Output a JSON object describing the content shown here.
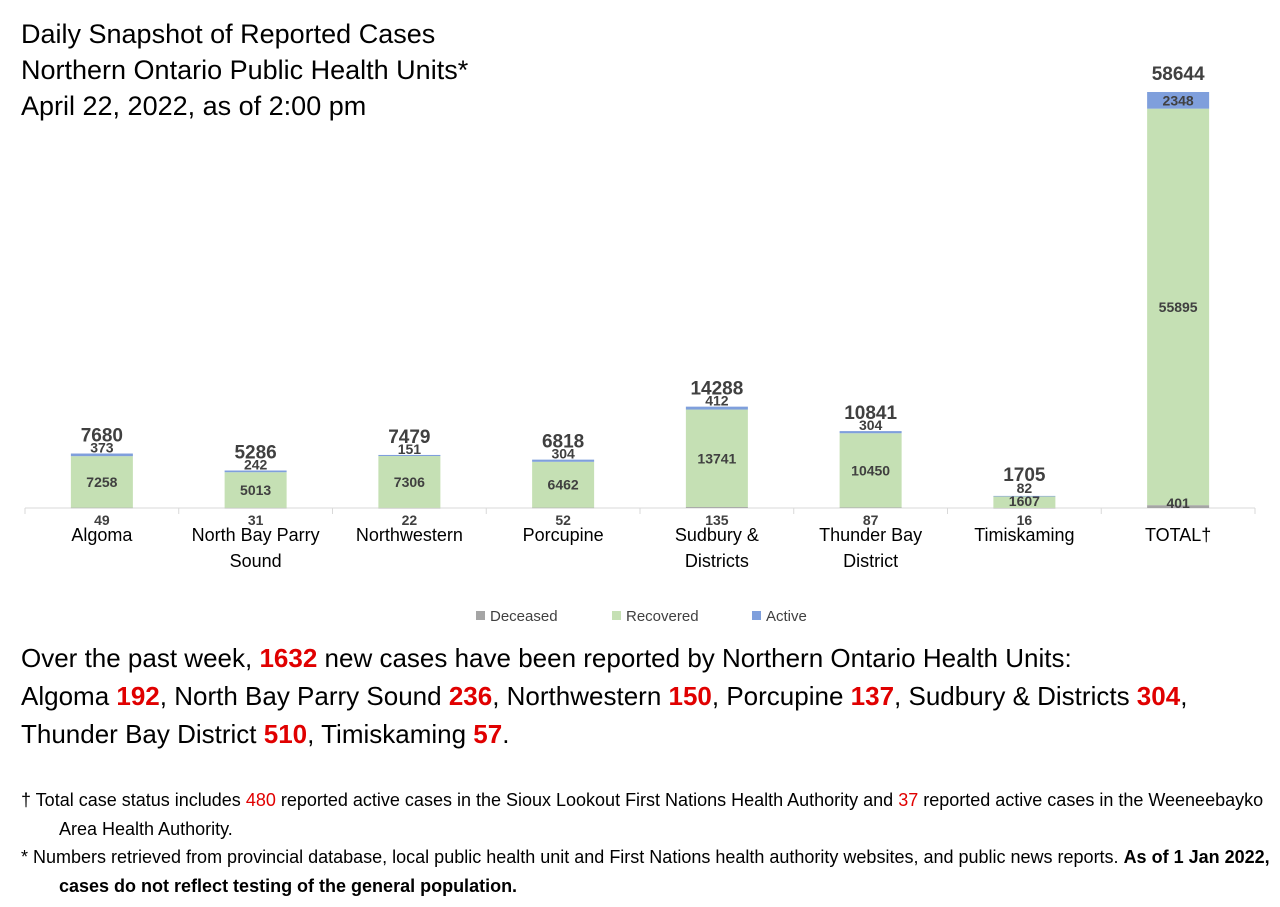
{
  "title_lines": [
    "Daily Snapshot of Reported Cases",
    "Northern Ontario Public Health Units*",
    "April 22, 2022, as of 2:00 pm"
  ],
  "chart_data": {
    "type": "bar",
    "stacked": true,
    "categories": [
      "Algoma",
      "North Bay Parry Sound",
      "Northwestern",
      "Porcupine",
      "Sudbury & Districts",
      "Thunder Bay District",
      "Timiskaming",
      "TOTAL†"
    ],
    "category_labels": [
      [
        "Algoma"
      ],
      [
        "North Bay Parry",
        "Sound"
      ],
      [
        "Northwestern"
      ],
      [
        "Porcupine"
      ],
      [
        "Sudbury &",
        "Districts"
      ],
      [
        "Thunder Bay",
        "District"
      ],
      [
        "Timiskaming"
      ],
      [
        "TOTAL†"
      ]
    ],
    "series": [
      {
        "name": "Deceased",
        "color": "#a5a5a5",
        "values": [
          49,
          31,
          22,
          52,
          135,
          87,
          16,
          401
        ]
      },
      {
        "name": "Recovered",
        "color": "#c5e0b4",
        "values": [
          7258,
          5013,
          7306,
          6462,
          13741,
          10450,
          1607,
          55895
        ]
      },
      {
        "name": "Active",
        "color": "#7f9fdc",
        "values": [
          373,
          242,
          151,
          304,
          412,
          304,
          82,
          2348
        ]
      }
    ],
    "totals": [
      7680,
      5286,
      7479,
      6818,
      14288,
      10841,
      1705,
      58644
    ],
    "legend_position": "bottom",
    "grid": false,
    "ylim": [
      0,
      58644
    ]
  },
  "summary": {
    "week_intro": "Over the past week, ",
    "week_total": "1632",
    "week_rest": " new cases have been reported by Northern Ontario Health Units:",
    "units": [
      {
        "name": "Algoma ",
        "value": "192",
        "sep": ", "
      },
      {
        "name": "North Bay Parry Sound ",
        "value": "236",
        "sep": ", "
      },
      {
        "name": "Northwestern ",
        "value": "150",
        "sep": ", "
      },
      {
        "name": "Porcupine ",
        "value": "137",
        "sep": ", "
      },
      {
        "name": "Sudbury & Districts ",
        "value": "304",
        "sep": ", "
      },
      {
        "name": "Thunder Bay District ",
        "value": "510",
        "sep": ", "
      },
      {
        "name": "Timiskaming ",
        "value": "57",
        "sep": "."
      }
    ]
  },
  "footnotes": {
    "dagger_1": "† Total case status includes ",
    "dagger_num1": "480",
    "dagger_2": " reported active cases in the Sioux Lookout First Nations Health Authority and ",
    "dagger_num2": "37",
    "dagger_3": " reported active cases in the Weeneebayko Area Health Authority.",
    "star_1": "* Numbers retrieved from provincial database, local public health unit and First Nations health authority websites, and public news reports. ",
    "star_bold": "As of 1 Jan 2022, cases do not reflect testing of the general population."
  },
  "colors": {
    "highlight": "#e00000",
    "axis_line": "#d9d9d9",
    "label_text": "#404040"
  }
}
